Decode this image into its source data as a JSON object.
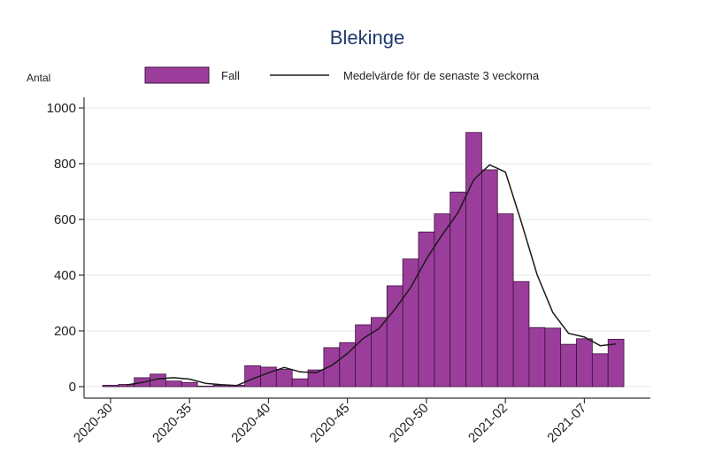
{
  "chart_data": {
    "type": "bar",
    "title": "Blekinge",
    "ylabel": "Antal",
    "xlabel": "",
    "ylim": [
      0,
      1000
    ],
    "yticks": [
      0,
      200,
      400,
      600,
      800,
      1000
    ],
    "grid": true,
    "legend_position": "top",
    "x_tick_labels": [
      "2020-30",
      "2020-35",
      "2020-40",
      "2020-45",
      "2020-50",
      "2021-02",
      "2021-07"
    ],
    "weeks": [
      "2020-30",
      "2020-31",
      "2020-32",
      "2020-33",
      "2020-34",
      "2020-35",
      "2020-36",
      "2020-37",
      "2020-38",
      "2020-39",
      "2020-40",
      "2020-41",
      "2020-42",
      "2020-43",
      "2020-44",
      "2020-45",
      "2020-46",
      "2020-47",
      "2020-48",
      "2020-49",
      "2020-50",
      "2020-51",
      "2020-52",
      "2020-53",
      "2021-01",
      "2021-02",
      "2021-03",
      "2021-04",
      "2021-05",
      "2021-06",
      "2021-07",
      "2021-08",
      "2021-09"
    ],
    "series": [
      {
        "name": "Fall",
        "type": "bar",
        "values": [
          5,
          8,
          32,
          45,
          20,
          15,
          2,
          5,
          5,
          75,
          70,
          62,
          28,
          60,
          140,
          158,
          222,
          248,
          362,
          458,
          555,
          620,
          698,
          912,
          778,
          620,
          377,
          212,
          210,
          152,
          172,
          118,
          170
        ]
      },
      {
        "name": "Medelvärde för de senaste 3 veckorna",
        "type": "line",
        "values": [
          null,
          6,
          15,
          28,
          32,
          27,
          12,
          7,
          4,
          28,
          50,
          69,
          53,
          50,
          76,
          119,
          173,
          209,
          277,
          356,
          458,
          545,
          624,
          743,
          796,
          770,
          592,
          403,
          266,
          191,
          178,
          147,
          153
        ]
      }
    ],
    "colors": {
      "bar_fill": "#9b3e9b",
      "bar_stroke": "#3c103c",
      "line": "#1a1a1a",
      "grid": "#e6eef0",
      "title": "#1f3a6e"
    }
  }
}
